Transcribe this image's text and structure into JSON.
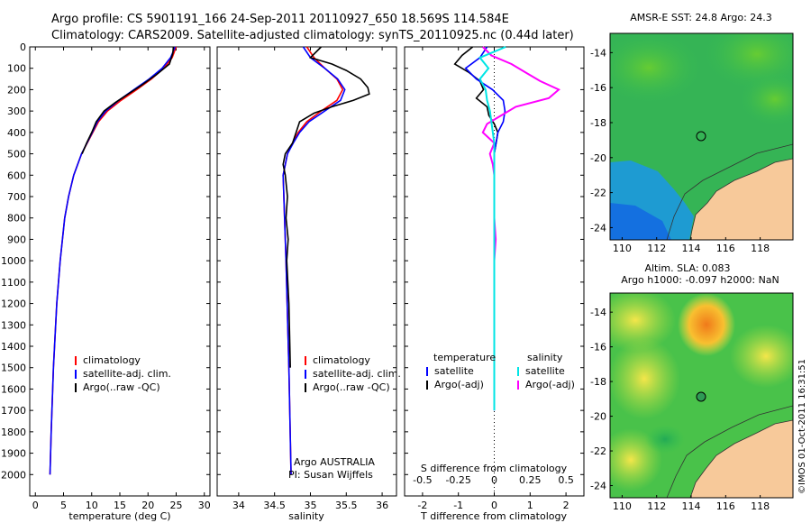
{
  "header": {
    "line1": "Argo profile: CS 5901191_166 24-Sep-2011 20110927_650 18.569S 114.584E",
    "line2": "Climatology: CARS2009. Satellite-adjusted climatology: synTS_20110925.nc (0.44d later)"
  },
  "colors": {
    "climatology": "#ff0000",
    "satellite": "#0000ff",
    "argo": "#000000",
    "satellite_s": "#00e5e5",
    "argo_s": "#ff00ff"
  },
  "chart_data": [
    {
      "type": "line",
      "title": "",
      "xlabel": "temperature (deg C)",
      "ylabel": "",
      "xlim": [
        -1,
        31
      ],
      "ylim": [
        2100,
        0
      ],
      "xticks": [
        "0",
        "5",
        "10",
        "15",
        "20",
        "25",
        "30"
      ],
      "yticks": [
        "0",
        "100",
        "200",
        "300",
        "400",
        "500",
        "600",
        "700",
        "800",
        "900",
        "1000",
        "1100",
        "1200",
        "1300",
        "1400",
        "1500",
        "1600",
        "1700",
        "1800",
        "1900",
        "2000"
      ],
      "legend": [
        "climatology",
        "satellite-adj. clim.",
        "Argo(..raw -QC)"
      ],
      "series": [
        {
          "name": "climatology",
          "depth": [
            0,
            50,
            100,
            150,
            200,
            250,
            300,
            350,
            400,
            500,
            600,
            700,
            800,
            1000,
            1200,
            1500,
            1800,
            2000
          ],
          "values": [
            25,
            24.3,
            22.8,
            20.6,
            18,
            15.2,
            12.8,
            11.2,
            10.2,
            8.2,
            6.8,
            5.9,
            5.2,
            4.4,
            3.8,
            3.2,
            2.8,
            2.6
          ]
        },
        {
          "name": "satellite-adj. clim.",
          "depth": [
            0,
            50,
            100,
            150,
            200,
            250,
            300,
            350,
            400,
            500,
            600,
            700,
            800,
            1000,
            1200,
            1500,
            1800,
            2000
          ],
          "values": [
            24.8,
            24,
            22.5,
            20.2,
            17.5,
            14.8,
            12.5,
            11,
            10.1,
            8.2,
            6.8,
            5.9,
            5.2,
            4.4,
            3.8,
            3.2,
            2.8,
            2.6
          ]
        },
        {
          "name": "Argo(..raw -QC)",
          "depth": [
            0,
            30,
            80,
            130,
            180,
            220,
            260,
            300,
            350,
            400,
            450,
            500
          ],
          "values": [
            24.5,
            24.4,
            23.8,
            21.5,
            18.8,
            16.5,
            14.2,
            12.2,
            10.8,
            10,
            9.1,
            8.3
          ]
        }
      ]
    },
    {
      "type": "line",
      "title": "",
      "xlabel": "salinity",
      "ylabel": "",
      "xlim": [
        33.7,
        36.2
      ],
      "ylim": [
        2100,
        0
      ],
      "xticks": [
        "34",
        "34.5",
        "35",
        "35.5",
        "36"
      ],
      "legend": [
        "climatology",
        "satellite-adj. clim.",
        "Argo(..raw -QC)"
      ],
      "annotation": [
        "Argo AUSTRALIA",
        "PI: Susan Wijffels"
      ],
      "series": [
        {
          "name": "climatology",
          "depth": [
            0,
            50,
            100,
            150,
            200,
            250,
            300,
            350,
            400,
            450,
            500,
            600,
            800,
            1000,
            1500,
            2000
          ],
          "values": [
            34.95,
            35.05,
            35.2,
            35.37,
            35.45,
            35.37,
            35.15,
            34.95,
            34.83,
            34.75,
            34.68,
            34.62,
            34.64,
            34.66,
            34.7,
            34.73
          ]
        },
        {
          "name": "satellite-adj. clim.",
          "depth": [
            0,
            50,
            100,
            150,
            200,
            250,
            300,
            350,
            400,
            450,
            500,
            600,
            800,
            1000,
            1500,
            2000
          ],
          "values": [
            34.9,
            35,
            35.2,
            35.38,
            35.48,
            35.42,
            35.2,
            34.98,
            34.85,
            34.76,
            34.68,
            34.62,
            34.64,
            34.66,
            34.7,
            34.73
          ]
        },
        {
          "name": "Argo(..raw -QC)",
          "depth": [
            0,
            50,
            80,
            110,
            150,
            190,
            220,
            250,
            280,
            310,
            350,
            400,
            450,
            500,
            550,
            600,
            700,
            800,
            900,
            1000,
            1200,
            1500
          ],
          "values": [
            35.15,
            35,
            35.3,
            35.5,
            35.7,
            35.8,
            35.82,
            35.6,
            35.3,
            35.05,
            34.85,
            34.8,
            34.75,
            34.65,
            34.62,
            34.65,
            34.68,
            34.66,
            34.69,
            34.67,
            34.7,
            34.72
          ]
        }
      ]
    },
    {
      "type": "line",
      "title": "",
      "xlabel": "T difference from climatology",
      "xlabel_top": "S difference from climatology",
      "ylabel": "",
      "xlim": [
        -2.5,
        2.5
      ],
      "ylim": [
        2100,
        0
      ],
      "xticks": [
        "-2",
        "-1",
        "0",
        "1",
        "2"
      ],
      "xticks_top": [
        "-0.5",
        "-0.25",
        "0",
        "0.25",
        "0.5"
      ],
      "legend": [
        "temperature",
        "satellite",
        "Argo(-adj)",
        "salinity",
        "satellite",
        "Argo(-adj)"
      ],
      "series": [
        {
          "name": "temperature satellite",
          "depth": [
            0,
            50,
            100,
            150,
            200,
            250,
            300,
            350,
            400,
            450,
            500,
            600,
            800,
            1000,
            1500,
            1700
          ],
          "values": [
            -0.2,
            -0.4,
            -0.8,
            -0.5,
            -0.05,
            0.25,
            0.3,
            0.25,
            0.1,
            0.05,
            0,
            0,
            0,
            0,
            0,
            0
          ]
        },
        {
          "name": "temperature Argo(-adj)",
          "depth": [
            0,
            40,
            80,
            120,
            160,
            200,
            240,
            280,
            320,
            360,
            400,
            450,
            500
          ],
          "values": [
            -0.6,
            -0.9,
            -1.1,
            -0.7,
            -0.4,
            -0.3,
            -0.5,
            -0.2,
            -0.15,
            0,
            0.1,
            0.05,
            0
          ]
        },
        {
          "name": "salinity satellite",
          "depth": [
            0,
            50,
            100,
            150,
            200,
            250,
            300,
            350,
            400,
            450,
            500,
            600,
            800,
            1000,
            1500,
            1700
          ],
          "values": [
            0.08,
            -0.1,
            -0.04,
            -0.1,
            -0.06,
            -0.05,
            -0.03,
            -0.02,
            -0.01,
            0,
            0,
            0,
            0,
            0,
            0,
            0
          ]
        },
        {
          "name": "salinity Argo(-adj)",
          "depth": [
            0,
            40,
            80,
            120,
            160,
            200,
            240,
            280,
            320,
            360,
            400,
            450,
            500,
            550,
            600,
            700,
            800,
            900,
            1000,
            1200,
            1500,
            1700
          ],
          "values": [
            -0.08,
            -0.02,
            0.12,
            0.22,
            0.32,
            0.45,
            0.38,
            0.15,
            0.05,
            -0.05,
            -0.08,
            0,
            -0.03,
            -0.01,
            0,
            0,
            0,
            0.01,
            0,
            0,
            0,
            0
          ]
        }
      ]
    },
    {
      "type": "heatmap",
      "title": "AMSR-E SST: 24.8 Argo: 24.3",
      "xticks": [
        "110",
        "112",
        "114",
        "116",
        "118"
      ],
      "yticks": [
        "-14",
        "-16",
        "-18",
        "-20",
        "-22",
        "-24"
      ],
      "xlim": [
        109.3,
        119.9
      ],
      "ylim": [
        -24.7,
        -12.9
      ],
      "argo_marker": {
        "lon": 114.584,
        "lat": -18.569
      }
    },
    {
      "type": "heatmap",
      "title": "Altim. SLA: 0.083",
      "subtitle": "Argo h1000: -0.097 h2000: NaN",
      "xticks": [
        "110",
        "112",
        "114",
        "116",
        "118"
      ],
      "yticks": [
        "-14",
        "-16",
        "-18",
        "-20",
        "-22",
        "-24"
      ],
      "xlim": [
        109.3,
        119.9
      ],
      "ylim": [
        -24.7,
        -12.9
      ],
      "argo_marker": {
        "lon": 114.584,
        "lat": -18.569
      }
    }
  ],
  "stamp": "©IMOS 01-Oct-2011 16:31:51"
}
